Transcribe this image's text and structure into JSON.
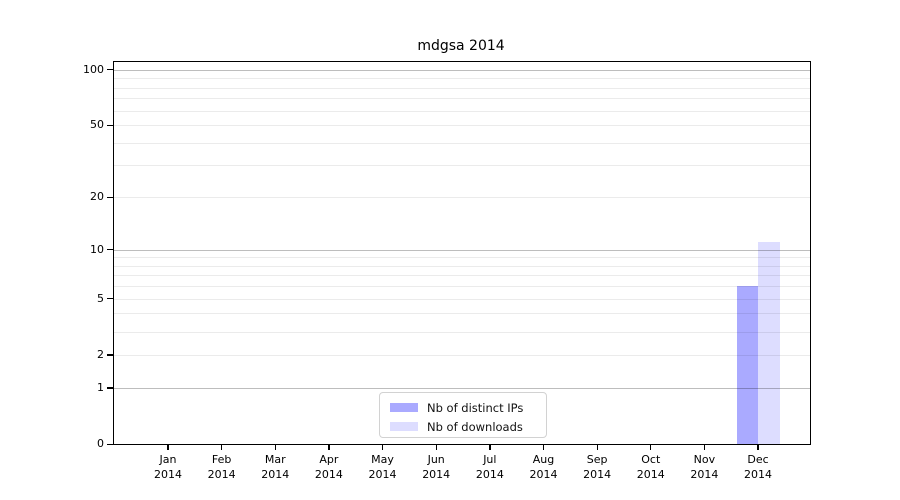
{
  "figure": {
    "background": "#ffffff"
  },
  "chart_data": {
    "type": "bar",
    "title": "mdgsa 2014",
    "year": "2014",
    "categories": [
      "Jan",
      "Feb",
      "Mar",
      "Apr",
      "May",
      "Jun",
      "Jul",
      "Aug",
      "Sep",
      "Oct",
      "Nov",
      "Dec"
    ],
    "series": [
      {
        "name": "Nb of distinct IPs",
        "color": "#aaaaff",
        "values": [
          0,
          0,
          0,
          0,
          0,
          0,
          0,
          0,
          0,
          0,
          0,
          6
        ]
      },
      {
        "name": "Nb of downloads",
        "color": "#ddddff",
        "values": [
          0,
          0,
          0,
          0,
          0,
          0,
          0,
          0,
          0,
          0,
          0,
          11
        ]
      }
    ],
    "y_axis": {
      "scale": "log10(1+x)",
      "ylim": [
        0,
        110
      ],
      "tick_values": [
        0,
        1,
        2,
        5,
        10,
        20,
        50,
        100
      ],
      "major_gridlines": [
        1,
        10,
        100
      ],
      "minor_gridlines": [
        2,
        3,
        4,
        5,
        6,
        7,
        8,
        9,
        20,
        30,
        40,
        50,
        60,
        70,
        80,
        90
      ]
    },
    "x_axis": {
      "tick_per_category": true
    },
    "legend": {
      "position": "inside-bottom-center"
    },
    "grid_on": true
  }
}
